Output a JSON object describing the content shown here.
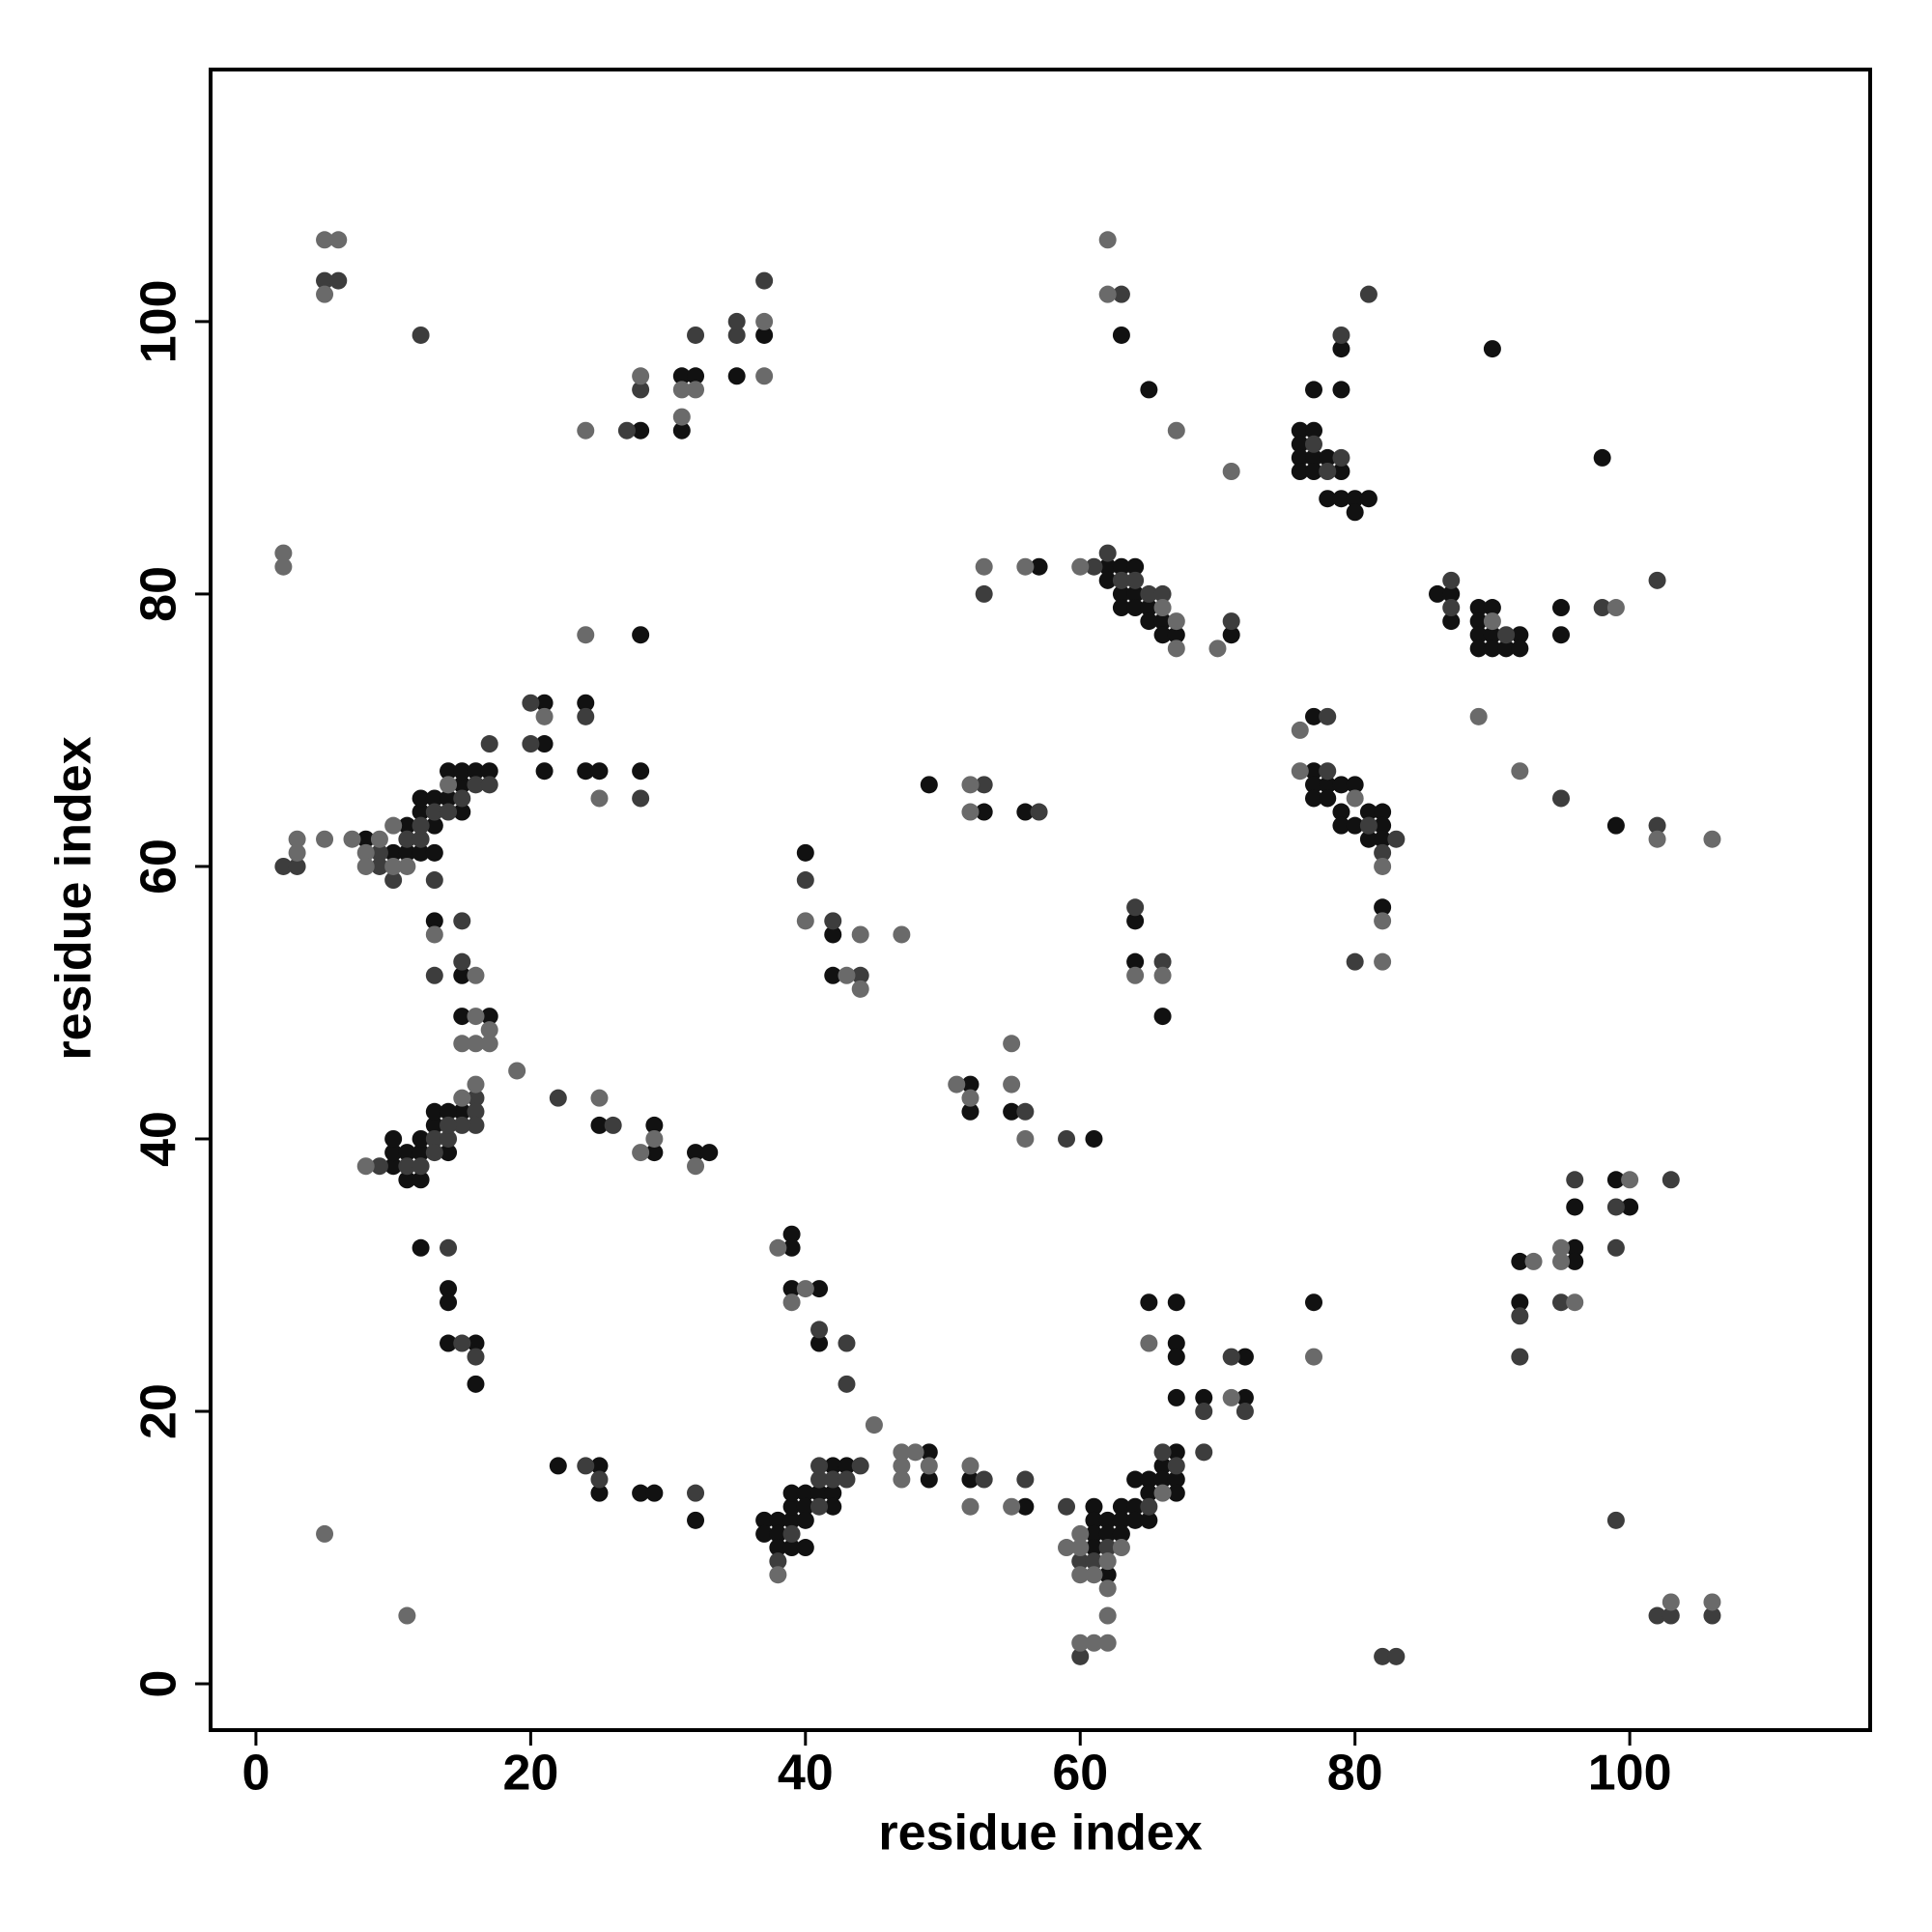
{
  "chart_data": {
    "type": "scatter",
    "xlabel": "residue index",
    "ylabel": "residue index",
    "xlim": [
      -3.3,
      117.5
    ],
    "ylim": [
      -3.4,
      118.5
    ],
    "xticks": [
      0,
      20,
      40,
      60,
      80,
      100
    ],
    "yticks": [
      0,
      20,
      40,
      60,
      80,
      100
    ],
    "grid": false,
    "series": [
      {
        "color": "#111111",
        "x": [
          28,
          31,
          31,
          32,
          35,
          37,
          28,
          21,
          24,
          21,
          21,
          24,
          25,
          28,
          8,
          10,
          11,
          11,
          12,
          12,
          12,
          13,
          13,
          13,
          14,
          14,
          15,
          15,
          15,
          16,
          17,
          13,
          15,
          15,
          17,
          15,
          10,
          10,
          10,
          11,
          11,
          12,
          12,
          12,
          13,
          13,
          14,
          14,
          25,
          29,
          29,
          32,
          33,
          12,
          14,
          14,
          14,
          16,
          16,
          22,
          25,
          25,
          28,
          29,
          32,
          39,
          39,
          39,
          41,
          41,
          37,
          37,
          38,
          38,
          38,
          39,
          39,
          39,
          39,
          40,
          40,
          40,
          40,
          41,
          42,
          42,
          42,
          43,
          49,
          49,
          52,
          56,
          61,
          61,
          61,
          61,
          62,
          62,
          62,
          63,
          63,
          63,
          64,
          64,
          64,
          65,
          65,
          65,
          66,
          66,
          67,
          67,
          67,
          65,
          67,
          67,
          67,
          67,
          69,
          72,
          72,
          77,
          92,
          92,
          96,
          96,
          96,
          99,
          100,
          52,
          52,
          55,
          61,
          40,
          42,
          42,
          49,
          53,
          56,
          57,
          62,
          62,
          63,
          63,
          63,
          64,
          64,
          64,
          65,
          65,
          66,
          66,
          67,
          71,
          63,
          65,
          64,
          64,
          66,
          76,
          76,
          76,
          76,
          77,
          77,
          77,
          77,
          78,
          78,
          79,
          79,
          79,
          79,
          80,
          80,
          81,
          77,
          77,
          77,
          77,
          78,
          78,
          79,
          79,
          79,
          80,
          80,
          81,
          81,
          82,
          82,
          82,
          82,
          86,
          87,
          87,
          89,
          89,
          89,
          89,
          90,
          90,
          90,
          91,
          92,
          92,
          95,
          95,
          90,
          98,
          99
        ],
        "values": [
          92,
          92,
          96,
          96,
          96,
          99,
          77,
          72,
          72,
          69,
          67,
          67,
          67,
          67,
          62,
          61,
          61,
          63,
          61,
          64,
          65,
          61,
          63,
          65,
          65,
          67,
          66,
          64,
          67,
          67,
          67,
          56,
          52,
          49,
          49,
          42,
          38,
          39,
          40,
          39,
          37,
          37,
          39,
          40,
          41,
          42,
          39,
          42,
          41,
          39,
          41,
          39,
          39,
          32,
          29,
          28,
          25,
          25,
          22,
          16,
          16,
          14,
          14,
          14,
          12,
          33,
          32,
          29,
          29,
          25,
          12,
          11,
          12,
          11,
          10,
          12,
          10,
          13,
          14,
          14,
          13,
          12,
          10,
          14,
          16,
          14,
          13,
          16,
          17,
          15,
          15,
          13,
          13,
          12,
          11,
          10,
          12,
          11,
          8,
          13,
          12,
          11,
          13,
          15,
          12,
          15,
          14,
          12,
          16,
          15,
          17,
          15,
          14,
          28,
          28,
          25,
          24,
          21,
          21,
          24,
          21,
          28,
          31,
          28,
          32,
          31,
          35,
          37,
          35,
          44,
          42,
          42,
          40,
          61,
          55,
          52,
          66,
          64,
          64,
          82,
          82,
          81,
          82,
          80,
          79,
          82,
          80,
          79,
          79,
          78,
          78,
          77,
          77,
          77,
          99,
          95,
          56,
          53,
          49,
          92,
          91,
          90,
          89,
          95,
          92,
          90,
          89,
          90,
          87,
          98,
          95,
          89,
          87,
          87,
          86,
          87,
          71,
          67,
          66,
          65,
          66,
          65,
          66,
          64,
          63,
          66,
          63,
          64,
          62,
          64,
          63,
          62,
          57,
          80,
          80,
          78,
          79,
          78,
          77,
          76,
          79,
          77,
          76,
          76,
          77,
          76,
          79,
          77,
          98,
          90,
          63
        ]
      },
      {
        "color": "#3d3d3d",
        "x": [
          5,
          6,
          12,
          27,
          28,
          32,
          35,
          35,
          37,
          20,
          24,
          20,
          28,
          17,
          2,
          3,
          9,
          9,
          10,
          11,
          12,
          12,
          13,
          13,
          14,
          15,
          16,
          17,
          13,
          15,
          15,
          16,
          16,
          16,
          15,
          22,
          9,
          11,
          12,
          13,
          13,
          14,
          14,
          26,
          14,
          15,
          16,
          24,
          25,
          32,
          41,
          43,
          43,
          38,
          39,
          41,
          41,
          41,
          42,
          43,
          44,
          53,
          56,
          59,
          60,
          60,
          61,
          62,
          65,
          66,
          67,
          69,
          69,
          71,
          72,
          82,
          83,
          92,
          92,
          95,
          96,
          99,
          99,
          103,
          99,
          102,
          103,
          106,
          56,
          59,
          40,
          42,
          44,
          53,
          57,
          53,
          61,
          62,
          63,
          64,
          65,
          66,
          71,
          63,
          64,
          66,
          77,
          78,
          79,
          79,
          81,
          78,
          78,
          81,
          82,
          83,
          80,
          87,
          87,
          91,
          98,
          102,
          95,
          102
        ],
        "values": [
          103,
          103,
          99,
          92,
          95,
          99,
          99,
          100,
          103,
          72,
          71,
          69,
          65,
          69,
          60,
          60,
          61,
          60,
          59,
          62,
          62,
          63,
          64,
          59,
          64,
          65,
          66,
          66,
          52,
          56,
          53,
          43,
          42,
          41,
          41,
          43,
          38,
          38,
          38,
          40,
          39,
          40,
          41,
          41,
          32,
          25,
          24,
          16,
          15,
          14,
          26,
          25,
          22,
          9,
          11,
          15,
          13,
          16,
          15,
          15,
          16,
          15,
          15,
          13,
          9,
          2,
          9,
          10,
          13,
          17,
          16,
          17,
          20,
          24,
          20,
          2,
          2,
          27,
          24,
          28,
          37,
          35,
          32,
          37,
          12,
          5,
          5,
          5,
          42,
          40,
          59,
          56,
          52,
          66,
          64,
          80,
          82,
          83,
          81,
          81,
          80,
          80,
          78,
          102,
          57,
          53,
          91,
          89,
          99,
          90,
          102,
          71,
          67,
          63,
          61,
          62,
          53,
          81,
          79,
          77,
          79,
          81,
          65,
          63
        ]
      },
      {
        "color": "#6a6a6a",
        "x": [
          5,
          6,
          5,
          2,
          2,
          24,
          28,
          31,
          31,
          32,
          37,
          37,
          24,
          21,
          25,
          3,
          3,
          5,
          7,
          8,
          8,
          9,
          10,
          10,
          11,
          14,
          13,
          16,
          16,
          17,
          15,
          16,
          17,
          16,
          15,
          19,
          8,
          25,
          28,
          29,
          32,
          5,
          11,
          38,
          39,
          40,
          45,
          38,
          47,
          48,
          47,
          47,
          49,
          52,
          52,
          55,
          59,
          60,
          60,
          60,
          60,
          61,
          61,
          62,
          62,
          62,
          62,
          63,
          66,
          65,
          71,
          77,
          93,
          95,
          95,
          96,
          100,
          103,
          106,
          51,
          52,
          55,
          55,
          56,
          40,
          44,
          43,
          44,
          47,
          52,
          52,
          53,
          56,
          60,
          66,
          67,
          67,
          70,
          62,
          62,
          67,
          71,
          64,
          66,
          76,
          76,
          80,
          82,
          82,
          82,
          90,
          99,
          89,
          92,
          102,
          106
        ],
        "values": [
          106,
          106,
          102,
          83,
          82,
          92,
          96,
          93,
          95,
          95,
          100,
          96,
          77,
          71,
          65,
          61,
          62,
          62,
          62,
          61,
          60,
          62,
          60,
          63,
          60,
          66,
          55,
          52,
          49,
          48,
          47,
          47,
          47,
          44,
          43,
          45,
          38,
          43,
          39,
          40,
          38,
          11,
          5,
          32,
          28,
          29,
          19,
          8,
          17,
          17,
          16,
          15,
          16,
          16,
          13,
          13,
          10,
          10,
          11,
          8,
          3,
          8,
          3,
          9,
          7,
          5,
          3,
          10,
          14,
          25,
          21,
          24,
          31,
          32,
          31,
          28,
          37,
          6,
          6,
          44,
          43,
          47,
          44,
          40,
          56,
          55,
          52,
          51,
          55,
          66,
          64,
          82,
          82,
          82,
          79,
          78,
          76,
          76,
          106,
          102,
          92,
          89,
          52,
          52,
          70,
          67,
          65,
          60,
          56,
          53,
          78,
          79,
          71,
          67,
          62,
          62
        ]
      }
    ]
  }
}
